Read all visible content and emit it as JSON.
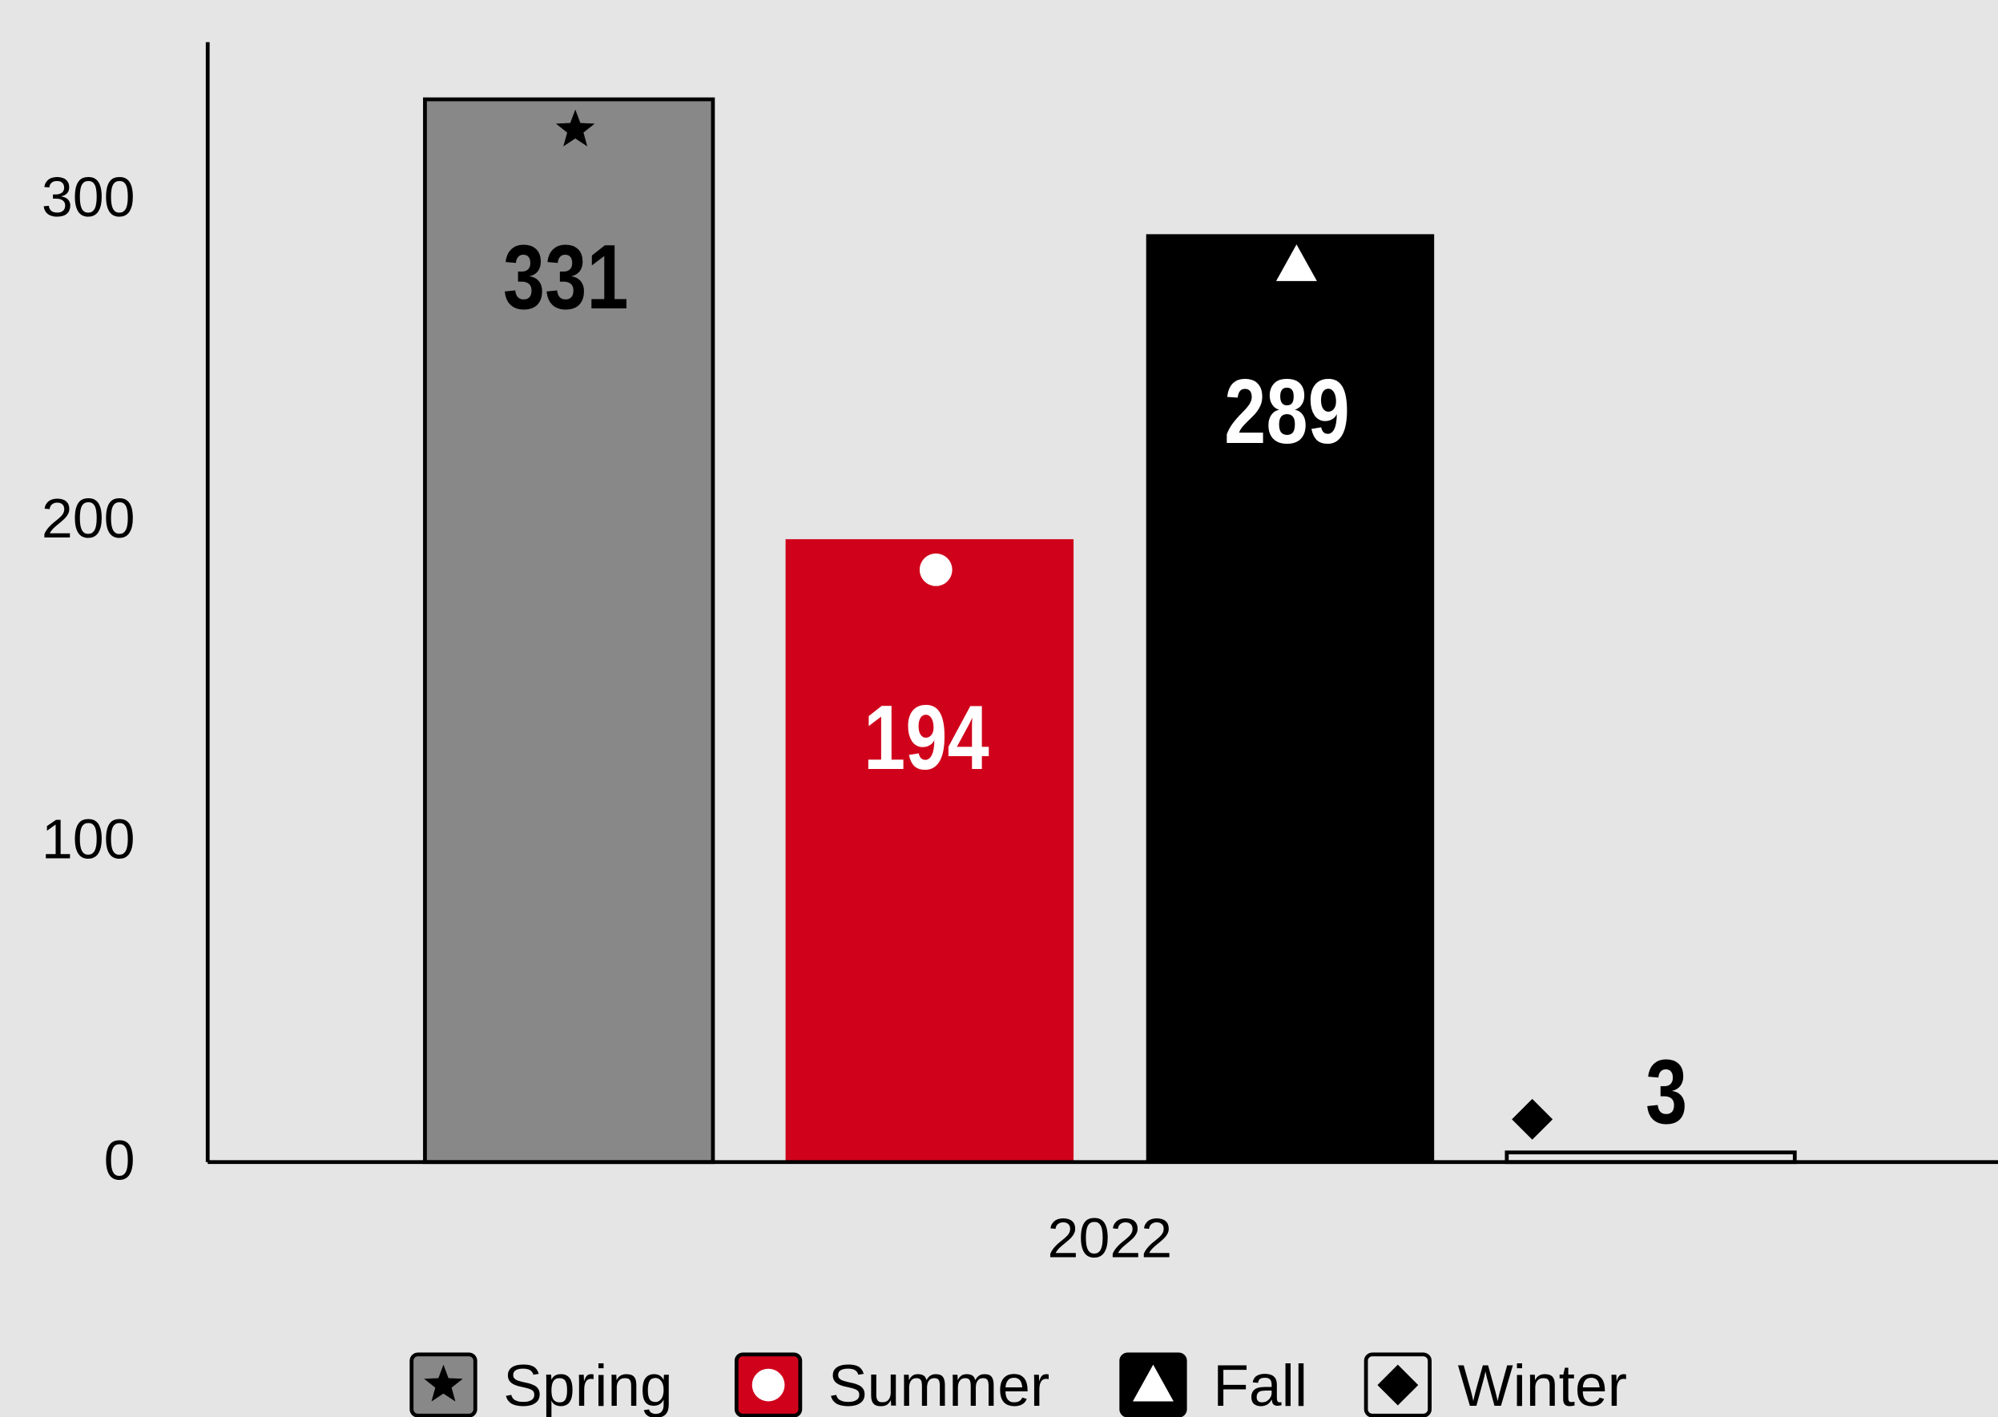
{
  "chart_data": {
    "type": "bar",
    "categories": [
      "2022"
    ],
    "series": [
      {
        "name": "Spring",
        "color": "#888888",
        "values": [
          331
        ]
      },
      {
        "name": "Summer",
        "color": "#d0021b",
        "values": [
          194
        ]
      },
      {
        "name": "Fall",
        "color": "#000000",
        "values": [
          289
        ]
      },
      {
        "name": "Winter",
        "color": "#e5e5e5",
        "values": [
          3
        ]
      }
    ],
    "ylim": [
      0,
      350
    ],
    "yticks": [
      0,
      100,
      200,
      300
    ],
    "legend": "bottom"
  }
}
